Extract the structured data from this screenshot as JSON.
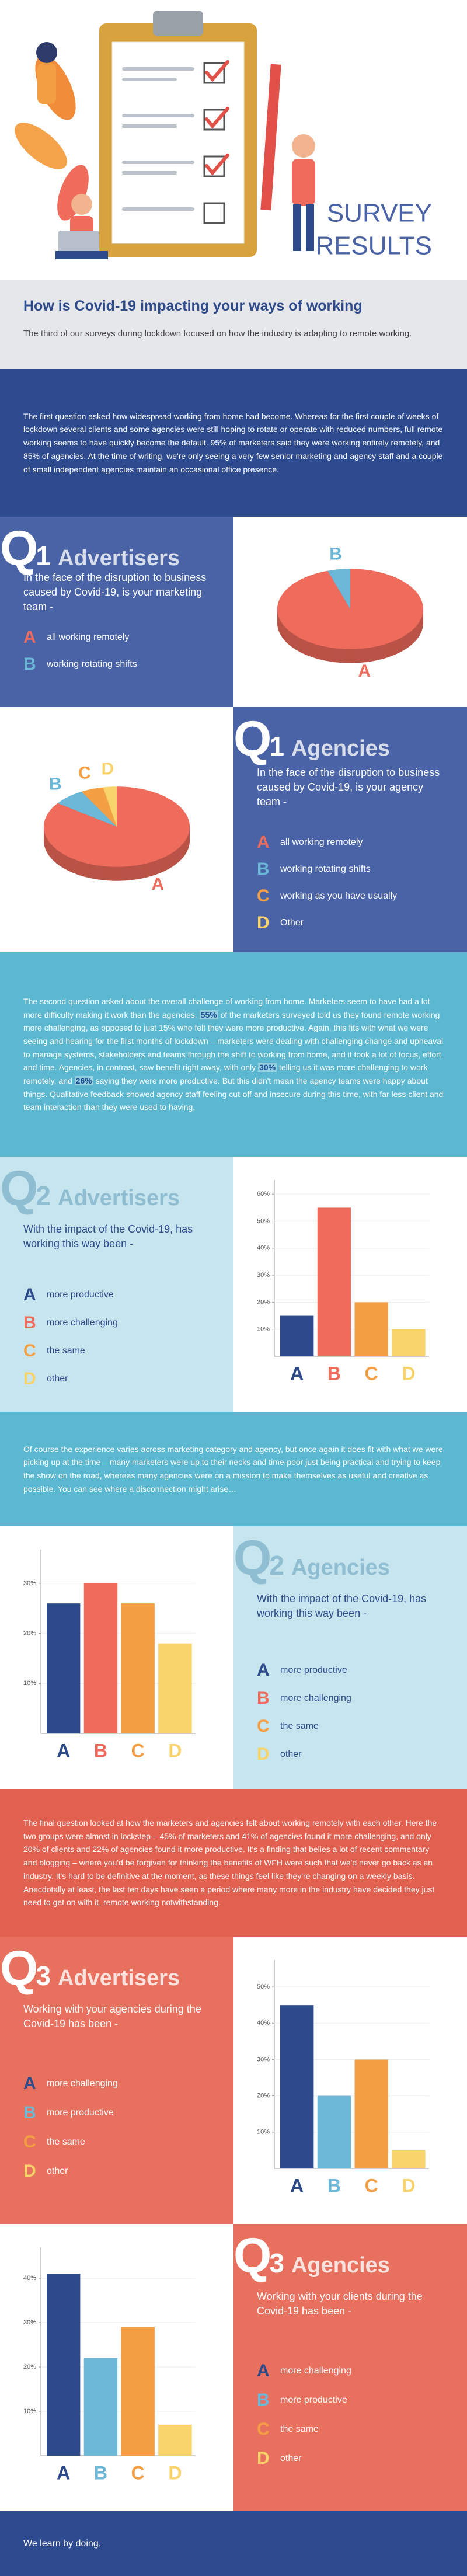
{
  "header": {
    "title_line1": "SURVEY",
    "title_line2": "RESULTS"
  },
  "intro": {
    "title": "How is Covid-19 impacting your ways of working",
    "subtitle": "The third of our surveys during lockdown focused on how the industry is adapting to remote working."
  },
  "paragraphs": [
    {
      "parts": [
        "The first question asked how widespread working from home had become. Whereas for the first couple of weeks of lockdown several clients and some agencies were still hoping to rotate or operate with reduced numbers, full remote working seems to have quickly become the default. 95% of marketers said they were working entirely remotely, and 85% of agencies. At the time of writing, we're only seeing a very few senior marketing and agency staff and a couple of small independent agencies maintain an occasional office presence."
      ]
    },
    {
      "parts": [
        "The second question asked about the overall challenge of working from home. Marketers seem to have had a lot more difficulty making it work than the agencies. ",
        "55%",
        " of the marketers surveyed told us they found remote working more challenging, as opposed to just 15% who felt they were more productive. Again, this fits with what we were seeing and hearing for the first months of lockdown – marketers were dealing with challenging change and upheaval to manage systems, stakeholders and teams through the shift to working from home, and it took a lot of focus, effort and time. Agencies, in contrast, saw benefit right away, with only ",
        "30%",
        " telling us it was more challenging to work remotely, and ",
        "26%",
        " saying they were more productive. But this didn't mean the agency teams were happy about things. Qualitative feedback showed agency staff feeling cut-off and insecure during this time, with far less client and team interaction than they were used to having."
      ]
    },
    {
      "parts": [
        "Of course the experience varies across marketing category and agency, but once again it does fit with what we were picking up at the time – many marketers were up to their necks and time-poor just being practical and trying to keep the show on the road, whereas many agencies were on a mission to make themselves as useful and creative as possible. You can see where a disconnection might arise…"
      ]
    },
    {
      "parts": [
        "The final question looked at how the marketers and agencies felt about working remotely with each other. Here the two groups were almost in lockstep – 45% of marketers and 41% of agencies found it more challenging, and only 20% of clients and 22% of agencies found it more productive. It's a finding that belies a lot of recent commentary and blogging – where you'd be forgiven for thinking the benefits of WFH were such that we'd never go back as an industry. It's hard to be definitive at the moment, as these things feel like they're changing on a weekly basis. Anecdotally at least, the last ten days have seen a period where many more in the industry have decided they just need to get on with it, remote working notwithstanding."
      ]
    }
  ],
  "chart_data": [
    {
      "type": "pie",
      "q": "Q",
      "number": "1",
      "group": "Advertisers",
      "question": "In the face of the disruption to business caused by Covid-19, is your marketing team -",
      "categories": [
        "A",
        "B"
      ],
      "labels": [
        "all working remotely",
        "working rotating shifts"
      ],
      "values": [
        95,
        5
      ],
      "colors": [
        "#ef6b5b",
        "#6bb8d8"
      ]
    },
    {
      "type": "pie",
      "q": "Q",
      "number": "1",
      "group": "Agencies",
      "question": "In the face of the disruption to business caused by Covid-19, is your agency team -",
      "categories": [
        "A",
        "B",
        "C",
        "D"
      ],
      "labels": [
        "all working remotely",
        "working rotating shifts",
        "working as you have usually",
        "Other"
      ],
      "values": [
        85,
        7,
        5,
        3
      ],
      "colors": [
        "#ef6b5b",
        "#6bb8d8",
        "#f59f45",
        "#f8d36a"
      ]
    },
    {
      "type": "bar",
      "q": "Q",
      "number": "2",
      "group": "Advertisers",
      "question": "With the impact of the Covid-19, has working this way been -",
      "categories": [
        "A",
        "B",
        "C",
        "D"
      ],
      "labels": [
        "more productive",
        "more challenging",
        "the same",
        "other"
      ],
      "values": [
        15,
        55,
        20,
        10
      ],
      "colors": [
        "#2d4a8a",
        "#ef6b5b",
        "#f59f45",
        "#f8d36a"
      ],
      "ylim": [
        0,
        62
      ],
      "yticks": [
        {
          "value": 10,
          "label": "10%"
        },
        {
          "value": 20,
          "label": "20%"
        },
        {
          "value": 30,
          "label": "30%"
        },
        {
          "value": 40,
          "label": "40%"
        },
        {
          "value": 50,
          "label": "50%"
        },
        {
          "value": 60,
          "label": "60%"
        }
      ]
    },
    {
      "type": "bar",
      "q": "Q",
      "number": "2",
      "group": "Agencies",
      "question": "With the impact of the Covid-19, has working this way been -",
      "categories": [
        "A",
        "B",
        "C",
        "D"
      ],
      "labels": [
        "more productive",
        "more challenging",
        "the same",
        "other"
      ],
      "values": [
        26,
        30,
        26,
        18
      ],
      "colors": [
        "#2d4a8a",
        "#ef6b5b",
        "#f59f45",
        "#f8d36a"
      ],
      "ylim": [
        0,
        35
      ],
      "yticks": [
        {
          "value": 10,
          "label": "10%"
        },
        {
          "value": 20,
          "label": "20%"
        },
        {
          "value": 30,
          "label": "30%"
        }
      ]
    },
    {
      "type": "bar",
      "q": "Q",
      "number": "3",
      "group": "Advertisers",
      "question": "Working with your agencies during the Covid-19 has been -",
      "categories": [
        "A",
        "B",
        "C",
        "D"
      ],
      "labels": [
        "more challenging",
        "more productive",
        "the same",
        "other"
      ],
      "values": [
        45,
        20,
        30,
        5
      ],
      "colors": [
        "#2d4a8a",
        "#6bb8d8",
        "#f59f45",
        "#f8d36a"
      ],
      "ylim": [
        0,
        55
      ],
      "yticks": [
        {
          "value": 10,
          "label": "10%"
        },
        {
          "value": 20,
          "label": "20%"
        },
        {
          "value": 30,
          "label": "30%"
        },
        {
          "value": 40,
          "label": "40%"
        },
        {
          "value": 50,
          "label": "50%"
        }
      ]
    },
    {
      "type": "bar",
      "q": "Q",
      "number": "3",
      "group": "Agencies",
      "question": "Working with your clients during the Covid-19 has been -",
      "categories": [
        "A",
        "B",
        "C",
        "D"
      ],
      "labels": [
        "more challenging",
        "more productive",
        "the same",
        "other"
      ],
      "values": [
        41,
        22,
        29,
        7
      ],
      "colors": [
        "#2d4a8a",
        "#6bb8d8",
        "#f59f45",
        "#f8d36a"
      ],
      "ylim": [
        0,
        45
      ],
      "yticks": [
        {
          "value": 10,
          "label": "10%"
        },
        {
          "value": 20,
          "label": "20%"
        },
        {
          "value": 30,
          "label": "30%"
        },
        {
          "value": 40,
          "label": "40%"
        }
      ]
    }
  ],
  "footer": {
    "text": "We learn by doing."
  }
}
